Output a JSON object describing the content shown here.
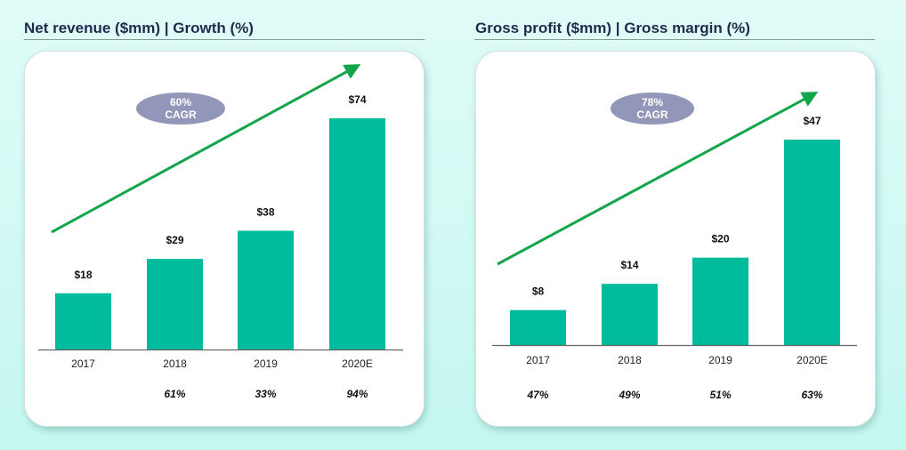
{
  "colors": {
    "bar": "#00bb9c",
    "arrow": "#12a54a",
    "badge": "#9296b8",
    "title": "#1f2a4d"
  },
  "chart_data": [
    {
      "type": "bar",
      "title": "Net revenue ($mm) | Growth (%)",
      "categories": [
        "2017",
        "2018",
        "2019",
        "2020E"
      ],
      "values": [
        18,
        29,
        38,
        74
      ],
      "value_labels": [
        "$18",
        "$29",
        "$38",
        "$74"
      ],
      "sub_labels": [
        "",
        "61%",
        "33%",
        "94%"
      ],
      "sub_label_meaning": "Growth (%)",
      "badge": {
        "line1": "60%",
        "line2": "CAGR"
      },
      "xlabel": "",
      "ylabel": "",
      "ylim": [
        0,
        74
      ],
      "grid": false,
      "legend": "none"
    },
    {
      "type": "bar",
      "title": "Gross profit ($mm) | Gross margin (%)",
      "categories": [
        "2017",
        "2018",
        "2019",
        "2020E"
      ],
      "values": [
        8,
        14,
        20,
        47
      ],
      "value_labels": [
        "$8",
        "$14",
        "$20",
        "$47"
      ],
      "sub_labels": [
        "47%",
        "49%",
        "51%",
        "63%"
      ],
      "sub_label_meaning": "Gross margin (%)",
      "badge": {
        "line1": "78%",
        "line2": "CAGR"
      },
      "xlabel": "",
      "ylabel": "",
      "ylim": [
        0,
        47
      ],
      "grid": false,
      "legend": "none"
    }
  ]
}
